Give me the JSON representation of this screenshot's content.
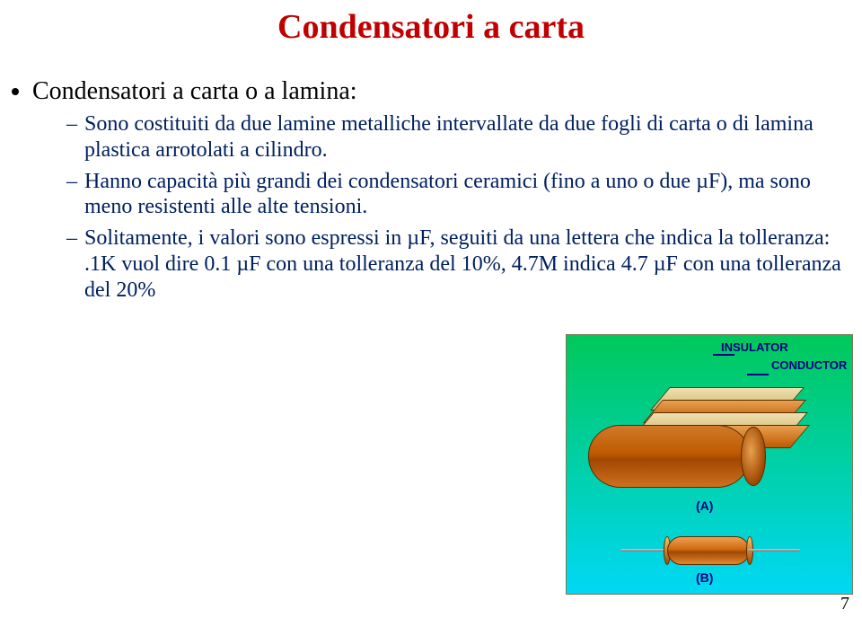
{
  "title": {
    "text": "Condensatori a carta",
    "color": "#c00000"
  },
  "bullet": {
    "main": "Condensatori a carta o a lamina:",
    "items": [
      "Sono costituiti da due lamine metalliche intervallate da due fogli di carta o di lamina plastica arrotolati a cilindro.",
      "Hanno capacità più grandi dei condensatori ceramici (fino a uno o due µF), ma sono meno resistenti alle alte tensioni.",
      "Solitamente, i valori sono espressi in µF, seguiti da una lettera che indica la tolleranza: .1K vuol dire 0.1 µF con una tolleranza del 10%, 4.7M indica 4.7 µF con una tolleranza del 20%"
    ],
    "color": "#002060"
  },
  "figure": {
    "labels": {
      "insulator": "INSULATOR",
      "conductor": "CONDUCTOR",
      "a": "(A)",
      "b": "(B)"
    }
  },
  "page": "7"
}
